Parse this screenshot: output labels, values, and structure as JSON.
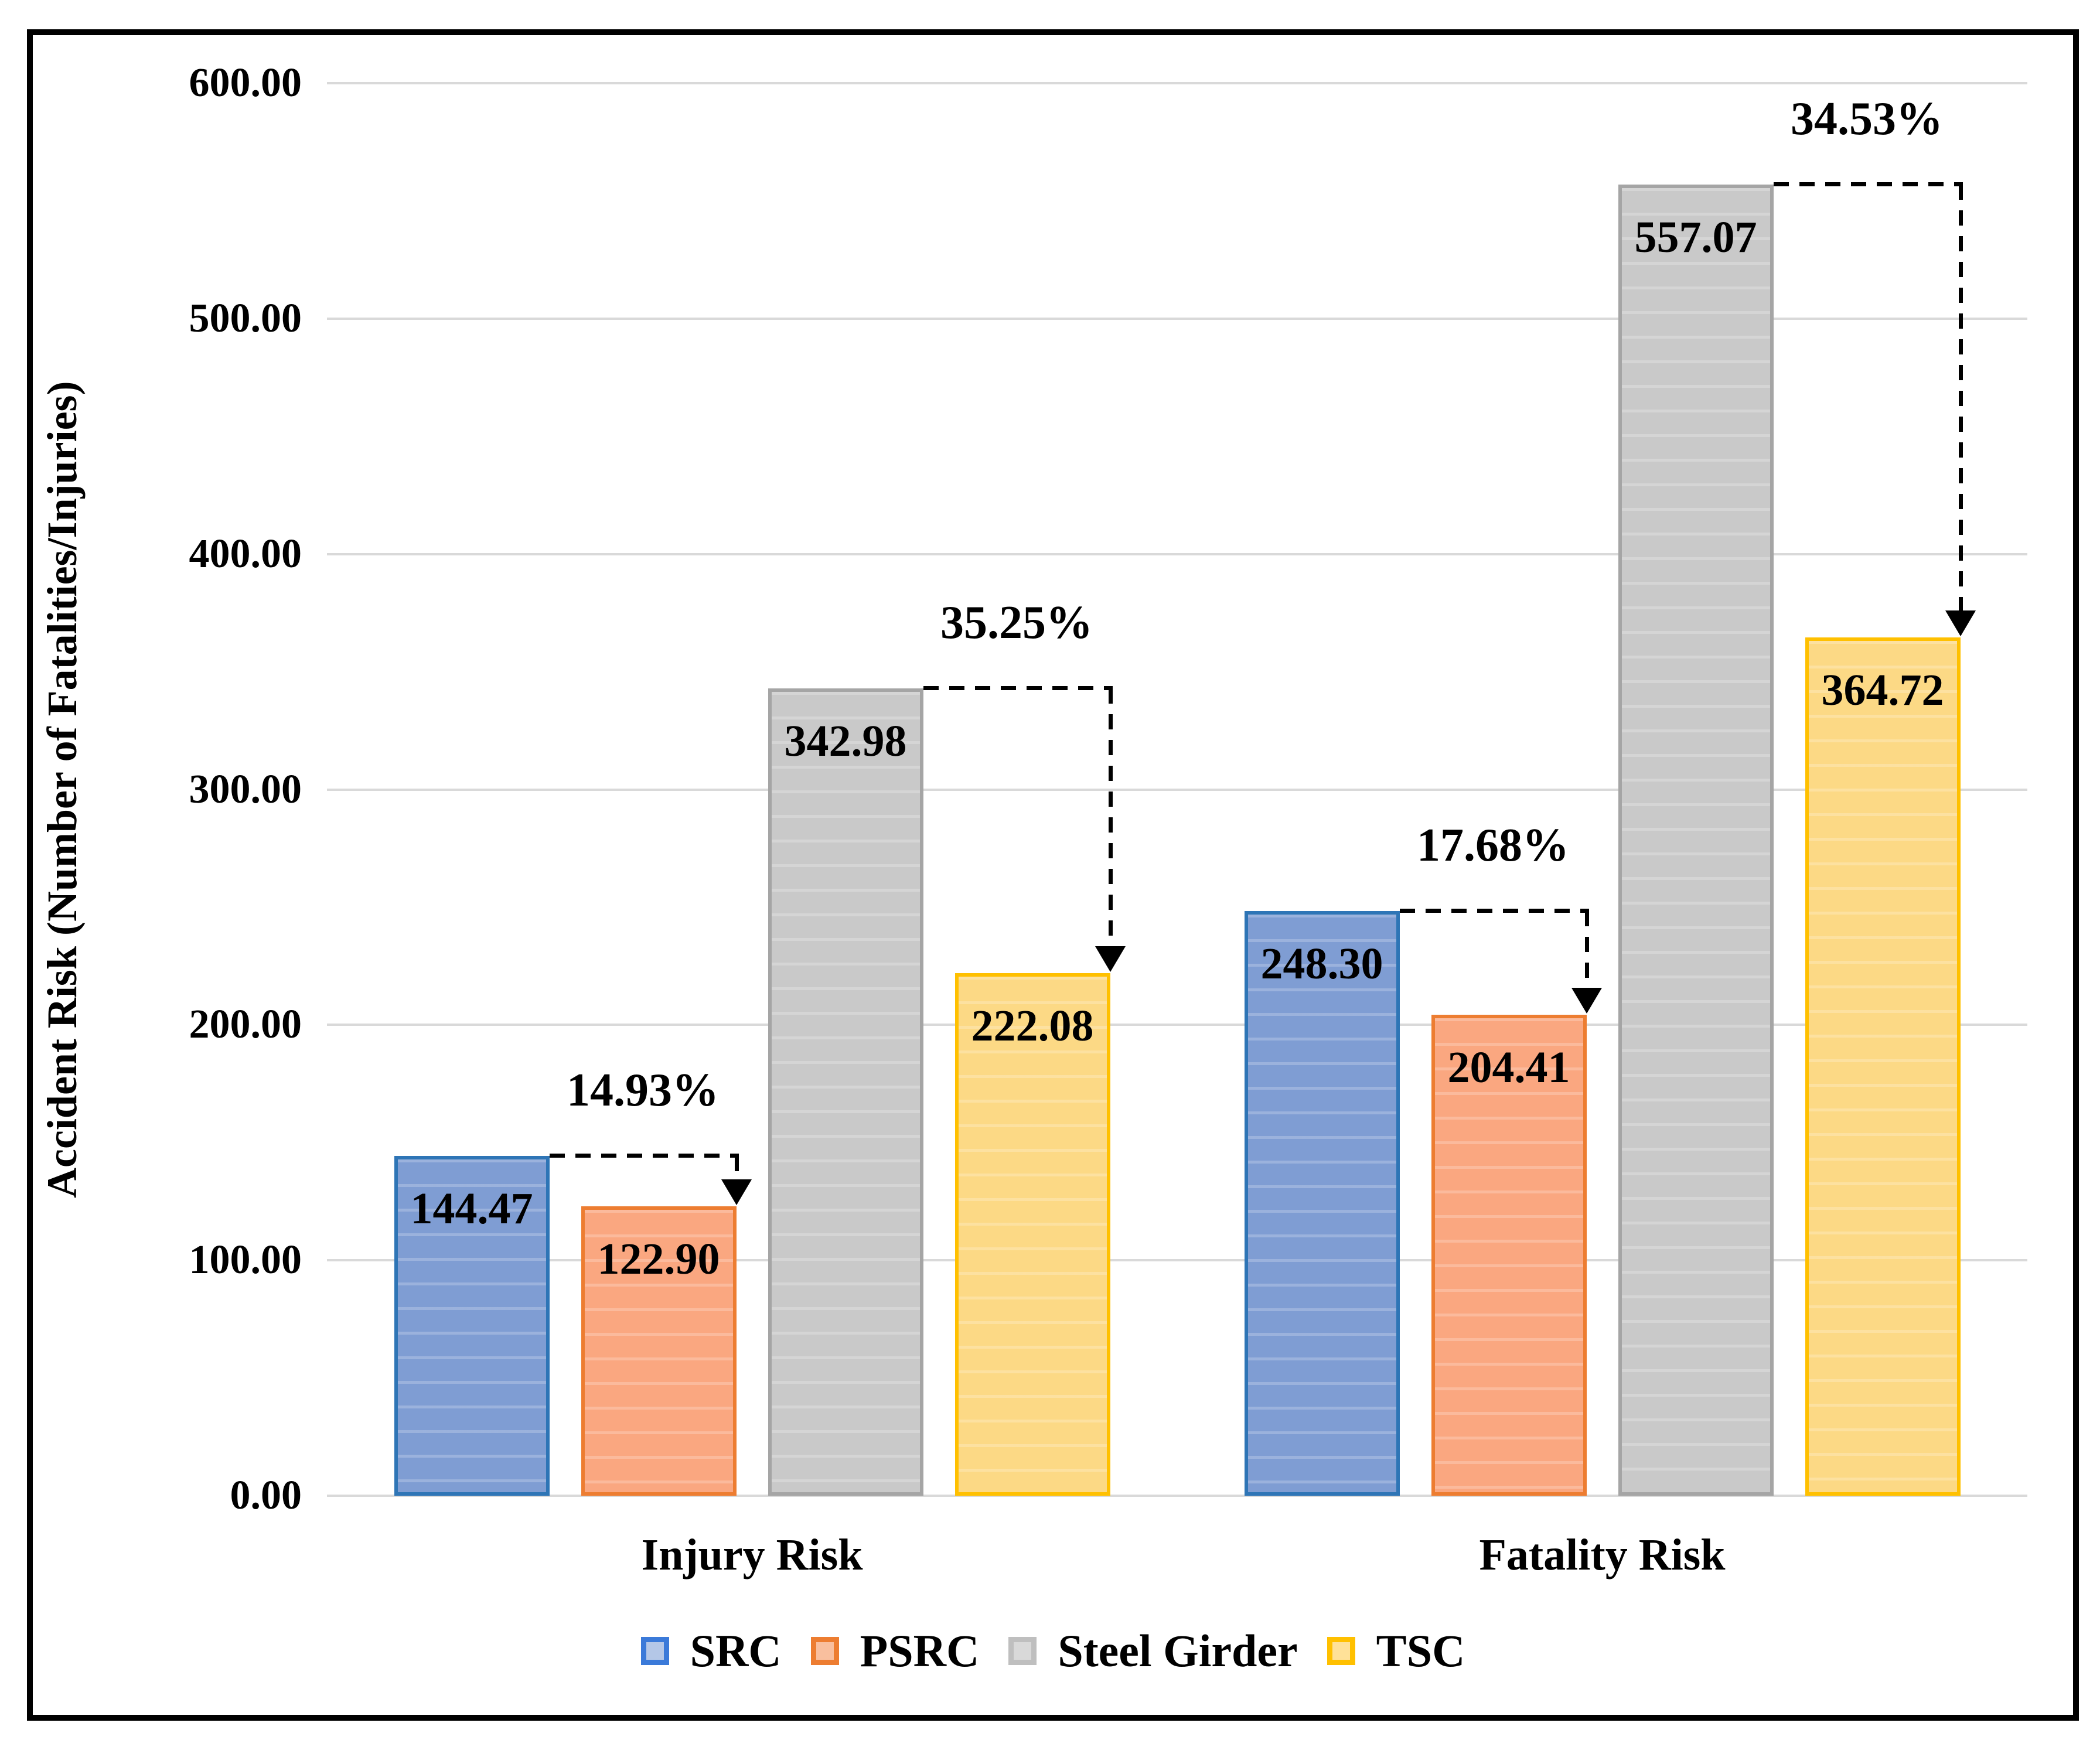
{
  "chart_data": {
    "type": "bar",
    "title": "",
    "ylabel": "Accident Risk (Number of Fatalities/Injuries)",
    "xlabel": "",
    "ylim": [
      0,
      600
    ],
    "ytick_interval": 100,
    "ytick_labels": [
      "0.00",
      "100.00",
      "200.00",
      "300.00",
      "400.00",
      "500.00",
      "600.00"
    ],
    "grid": true,
    "legend_position": "bottom",
    "categories": [
      "Injury Risk",
      "Fatality Risk"
    ],
    "series": [
      {
        "name": "SRC",
        "values": [
          144.47,
          248.3
        ],
        "labels": [
          "144.47",
          "248.30"
        ],
        "fill": "#7F9DD3",
        "border": "#2E75B6",
        "legend_fill": "#B4C7E7",
        "legend_border": "#3B7AD9"
      },
      {
        "name": "PSRC",
        "values": [
          122.9,
          204.41
        ],
        "labels": [
          "122.90",
          "204.41"
        ],
        "fill": "#FAA780",
        "border": "#ED7D31",
        "legend_fill": "#F9BF9E",
        "legend_border": "#ED7D31"
      },
      {
        "name": "Steel Girder",
        "values": [
          342.98,
          557.07
        ],
        "labels": [
          "342.98",
          "557.07"
        ],
        "fill": "#C9C9C9",
        "border": "#A5A5A5",
        "legend_fill": "#D9D9D9",
        "legend_border": "#BFBFBF"
      },
      {
        "name": "TSC",
        "values": [
          222.08,
          364.72
        ],
        "labels": [
          "222.08",
          "364.72"
        ],
        "fill": "#FCD985",
        "border": "#FFC000",
        "legend_fill": "#FFE198",
        "legend_border": "#FFC000"
      }
    ],
    "annotations": [
      {
        "label": "14.93%",
        "category": 0,
        "from_series": 0,
        "to_series": 1
      },
      {
        "label": "35.25%",
        "category": 0,
        "from_series": 2,
        "to_series": 3
      },
      {
        "label": "17.68%",
        "category": 1,
        "from_series": 0,
        "to_series": 1
      },
      {
        "label": "34.53%",
        "category": 1,
        "from_series": 2,
        "to_series": 3
      }
    ]
  },
  "colors": {
    "gridline": "#D9D9D9",
    "frame_border": "#000000",
    "text": "#000000",
    "annotation": "#000000",
    "background": "#FFFFFF"
  }
}
